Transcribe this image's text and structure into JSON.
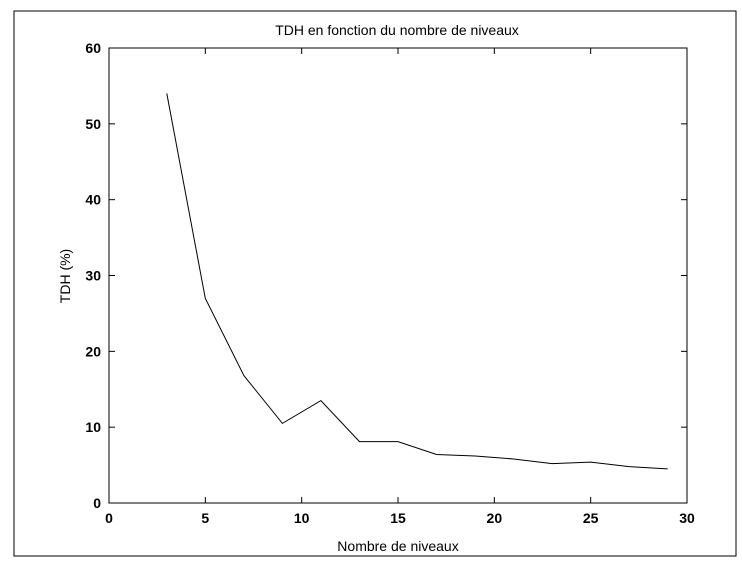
{
  "chart_data": {
    "type": "line",
    "title": "TDH en fonction du nombre de niveaux",
    "xlabel": "Nombre de niveaux",
    "ylabel": "TDH (%)",
    "xlim": [
      0,
      30
    ],
    "ylim": [
      0,
      60
    ],
    "xticks": [
      0,
      5,
      10,
      15,
      20,
      25,
      30
    ],
    "yticks": [
      0,
      10,
      20,
      30,
      40,
      50,
      60
    ],
    "grid": false,
    "series": [
      {
        "color": "#000000",
        "x": [
          3,
          5,
          7,
          9,
          11,
          13,
          15,
          17,
          19,
          21,
          23,
          25,
          27,
          29
        ],
        "y": [
          54,
          27,
          16.8,
          10.5,
          13.5,
          8.1,
          8.1,
          6.4,
          6.2,
          5.8,
          5.2,
          5.4,
          4.8,
          4.5
        ]
      }
    ]
  }
}
